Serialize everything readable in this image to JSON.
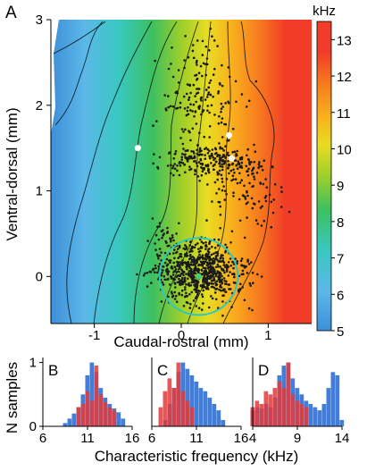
{
  "colors": {
    "colormap": [
      "#3f8fd8",
      "#5bb8e8",
      "#38c8c0",
      "#3cc060",
      "#9ecf2a",
      "#e8dc22",
      "#f9b21e",
      "#f77a1e",
      "#f03c28"
    ],
    "red_bar": "#e23a3a",
    "blue_bar": "#2f6fd6",
    "circle": "#2fc8c0",
    "dot": "#1a1a1a"
  },
  "chart_data": [
    {
      "type": "heatmap",
      "panel_label": "A",
      "xlabel": "Caudal-rostral (mm)",
      "ylabel": "Ventral-dorsal (mm)",
      "xlim": [
        -1.5,
        1.5
      ],
      "ylim": [
        -0.55,
        3.0
      ],
      "xticks": [
        -1,
        0,
        1
      ],
      "yticks": [
        0,
        1,
        2,
        3
      ],
      "colorbar": {
        "unit": "kHz",
        "range": [
          5,
          13.5
        ],
        "ticks": [
          5,
          6,
          7,
          8,
          9,
          10,
          11,
          12,
          13
        ]
      },
      "frequency_bands": [
        {
          "x": -1.5,
          "khz": 5.3
        },
        {
          "x": -1.1,
          "khz": 5.8
        },
        {
          "x": -0.75,
          "khz": 6.6
        },
        {
          "x": -0.45,
          "khz": 7.6
        },
        {
          "x": -0.15,
          "khz": 8.8
        },
        {
          "x": 0.15,
          "khz": 10.2
        },
        {
          "x": 0.45,
          "khz": 11.5
        },
        {
          "x": 0.75,
          "khz": 12.6
        },
        {
          "x": 1.5,
          "khz": 13.3
        }
      ],
      "white_dots": [
        [
          -0.5,
          1.5
        ],
        [
          0.55,
          1.65
        ],
        [
          0.58,
          1.38
        ]
      ],
      "cyan_circle": {
        "center": [
          0.2,
          0
        ],
        "radius": 0.45
      }
    },
    {
      "type": "bar",
      "panel_label": "B",
      "ylabel": "N samples",
      "xlim": [
        6,
        16
      ],
      "xticks": [
        6,
        11,
        16
      ],
      "ylim": [
        0,
        1.05
      ],
      "yticks": [
        0,
        1
      ],
      "series": [
        {
          "color": "blue",
          "x": [
            8.5,
            9.0,
            9.5,
            10.0,
            10.5,
            11.0,
            11.5,
            12.0,
            12.5,
            13.0,
            13.5,
            14.0,
            14.5,
            15.0
          ],
          "values": [
            0.05,
            0.12,
            0.2,
            0.3,
            0.5,
            0.8,
            1.0,
            0.85,
            0.6,
            0.45,
            0.35,
            0.28,
            0.22,
            0.12
          ]
        },
        {
          "color": "red",
          "x": [
            10.0,
            10.5,
            11.0,
            11.5,
            12.0,
            12.5,
            13.0,
            13.5,
            14.0
          ],
          "values": [
            0.3,
            0.35,
            0.55,
            0.4,
            0.95,
            0.5,
            0.38,
            0.3,
            0.25
          ]
        }
      ]
    },
    {
      "type": "bar",
      "panel_label": "C",
      "xlim": [
        6,
        16
      ],
      "xticks": [
        6,
        11,
        16
      ],
      "ylim": [
        0,
        1.05
      ],
      "series": [
        {
          "color": "blue",
          "x": [
            7.5,
            8.0,
            8.5,
            9.0,
            9.5,
            10.0,
            10.5,
            11.0,
            11.5,
            12.0,
            12.5,
            13.0,
            13.5,
            14.0
          ],
          "values": [
            0.1,
            0.35,
            0.6,
            0.85,
            1.0,
            0.9,
            0.8,
            0.7,
            0.6,
            0.55,
            0.45,
            0.35,
            0.25,
            0.1
          ]
        },
        {
          "color": "red",
          "x": [
            7.0,
            7.5,
            8.0,
            8.5,
            9.0,
            9.5,
            10.0,
            10.5
          ],
          "values": [
            0.3,
            0.55,
            0.75,
            0.6,
            1.0,
            0.55,
            0.4,
            0.3
          ]
        }
      ]
    },
    {
      "type": "bar",
      "panel_label": "D",
      "xlim": [
        4,
        14
      ],
      "xticks": [
        4,
        9,
        14
      ],
      "ylim": [
        0,
        1.05
      ],
      "series": [
        {
          "color": "blue",
          "x": [
            4.0,
            4.5,
            5.0,
            5.5,
            6.0,
            6.5,
            7.0,
            7.5,
            8.0,
            8.5,
            9.0,
            9.5,
            10.0,
            10.5,
            11.0,
            11.5,
            12.0,
            12.5,
            13.0,
            13.5,
            14.0
          ],
          "values": [
            0.25,
            0.3,
            0.28,
            0.35,
            0.3,
            0.45,
            0.8,
            0.95,
            1.0,
            0.75,
            0.6,
            0.5,
            0.4,
            0.35,
            0.3,
            0.25,
            0.35,
            0.6,
            0.85,
            0.8,
            0.1
          ]
        },
        {
          "color": "red",
          "x": [
            4.0,
            4.5,
            5.0,
            5.5,
            6.0,
            6.5,
            7.0,
            7.5,
            8.0,
            8.5,
            9.0,
            9.5,
            10.0
          ],
          "values": [
            0.3,
            0.4,
            0.35,
            0.55,
            0.5,
            0.6,
            0.7,
            0.6,
            1.0,
            0.5,
            0.4,
            0.35,
            0.3
          ]
        }
      ]
    }
  ],
  "shared_xlabel": "Characteristic frequency (kHz)"
}
